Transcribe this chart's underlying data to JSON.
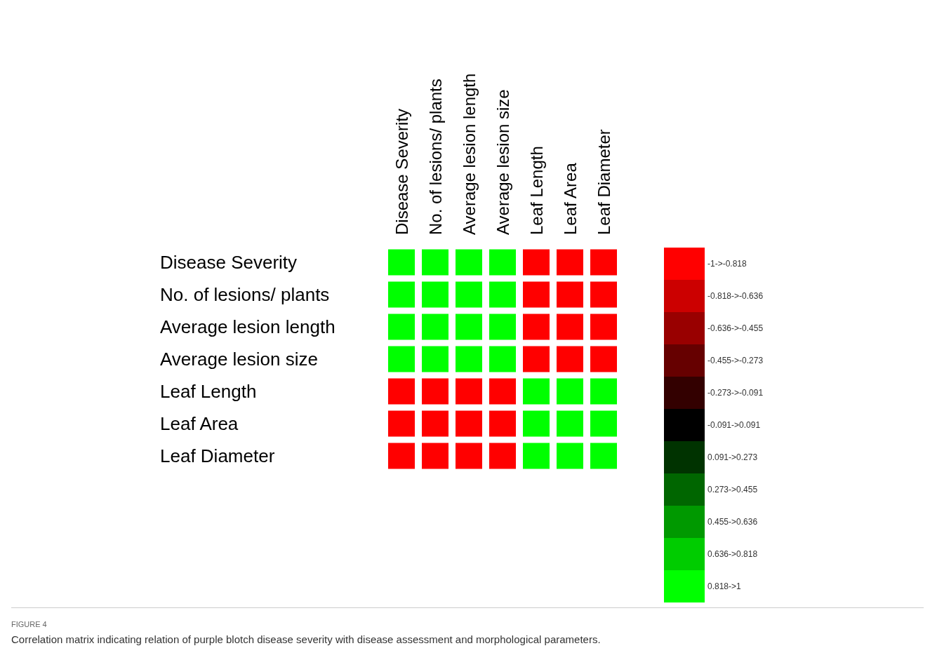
{
  "chart_data": {
    "type": "heatmap",
    "categories": [
      "Disease Severity",
      "No. of lesions/ plants",
      "Average lesion length",
      "Average lesion size",
      "Leaf Length",
      "Leaf Area",
      "Leaf Diameter"
    ],
    "y_categories": [
      "Disease Severity",
      "No. of lesions/ plants",
      "Average lesion length",
      "Average lesion size",
      "Leaf Length",
      "Leaf Area",
      "Leaf Diameter"
    ],
    "cells": [
      [
        1,
        0.9,
        0.9,
        0.9,
        -0.9,
        -0.9,
        -0.9
      ],
      [
        0.9,
        1,
        0.9,
        0.9,
        -0.9,
        -0.9,
        -0.9
      ],
      [
        0.9,
        0.9,
        1,
        0.9,
        -0.9,
        -0.9,
        -0.9
      ],
      [
        0.9,
        0.9,
        0.9,
        1,
        -0.9,
        -0.9,
        -0.9
      ],
      [
        -0.9,
        -0.9,
        -0.9,
        -0.9,
        1,
        0.9,
        0.9
      ],
      [
        -0.9,
        -0.9,
        -0.9,
        -0.9,
        0.9,
        1,
        0.9
      ],
      [
        -0.9,
        -0.9,
        -0.9,
        -0.9,
        0.9,
        0.9,
        1
      ]
    ],
    "clim": [
      -1,
      1
    ],
    "colors": [
      "#ff0000",
      "#cc0000",
      "#990000",
      "#660000",
      "#330000",
      "#000000",
      "#003300",
      "#006600",
      "#009900",
      "#00cc00",
      "#00ff00"
    ],
    "cticks": [
      {
        "value": -0.909,
        "label": "-1->-0.818"
      },
      {
        "value": -0.727,
        "label": "-0.818->-0.636"
      },
      {
        "value": -0.5455,
        "label": "-0.636->-0.455"
      },
      {
        "value": -0.364,
        "label": "-0.455->-0.273"
      },
      {
        "value": -0.182,
        "label": "-0.273->-0.091"
      },
      {
        "value": 0,
        "label": "-0.091->0.091"
      },
      {
        "value": 0.182,
        "label": "0.091->0.273"
      },
      {
        "value": 0.364,
        "label": "0.273->0.455"
      },
      {
        "value": 0.5455,
        "label": "0.455->0.636"
      },
      {
        "value": 0.727,
        "label": "0.636->0.818"
      },
      {
        "value": 0.909,
        "label": "0.818->1"
      }
    ],
    "annotations": [
      "FIGURE 4",
      "Correlation matrix indicating relation of purple blotch disease severity with disease assessment and morphological parameters."
    ]
  }
}
